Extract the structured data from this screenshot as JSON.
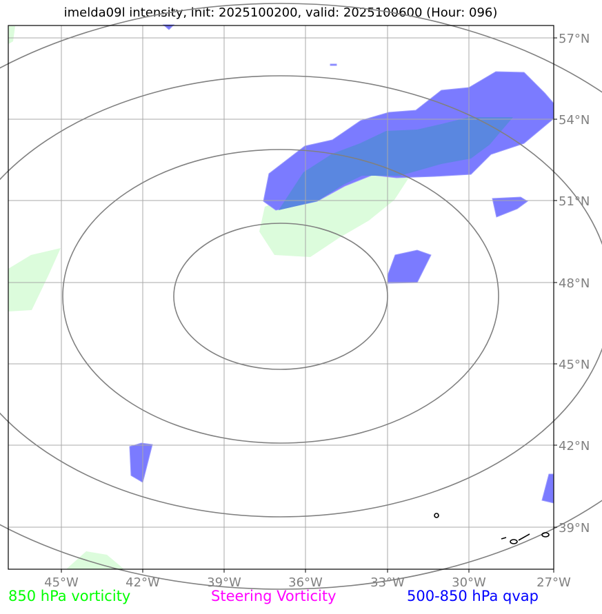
{
  "title": "imelda09l intensity, init: 2025100200, valid: 2025100600 (Hour: 096)",
  "x_ticks": [
    "45°W",
    "42°W",
    "39°W",
    "36°W",
    "33°W",
    "30°W",
    "27°W"
  ],
  "y_ticks": [
    "57°N",
    "54°N",
    "51°N",
    "48°N",
    "45°N",
    "42°N",
    "39°N"
  ],
  "legend": [
    {
      "label": "850 hPa vorticity",
      "color": "#00ff00"
    },
    {
      "label": "Steering Vorticity",
      "color": "#ff00ff"
    },
    {
      "label": "500-850 hPa qvap",
      "color": "#0000ff"
    }
  ],
  "colors": {
    "qvap_fill": "#7b7bff",
    "vorticity_fill": "#dcfcdc",
    "overlap_fill": "#5a87e0",
    "contour": "#808080",
    "grid": "#a9a9a9"
  }
}
